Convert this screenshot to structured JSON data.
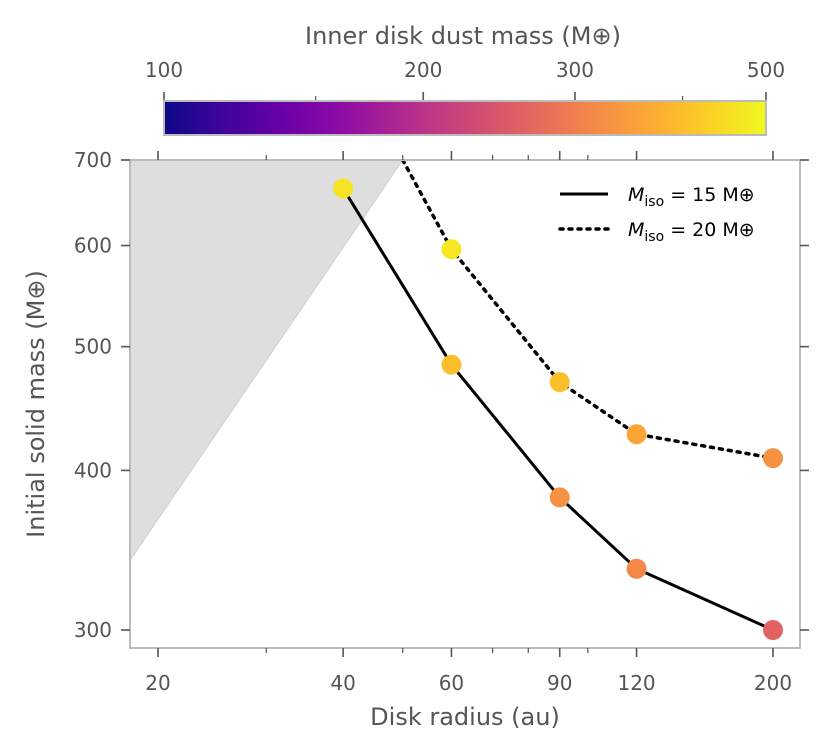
{
  "chart_data": {
    "type": "line",
    "xscale": "log",
    "yscale": "log",
    "xlabel": "Disk radius (au)",
    "ylabel": "Initial solid mass (M⊕)",
    "xlim": [
      18,
      215
    ],
    "ylim": [
      290,
      700
    ],
    "xticks": [
      {
        "value": 20,
        "label": "20"
      },
      {
        "value": 40,
        "label": "40"
      },
      {
        "value": 60,
        "label": "60"
      },
      {
        "value": 90,
        "label": "90"
      },
      {
        "value": 120,
        "label": "120"
      },
      {
        "value": 200,
        "label": "200"
      }
    ],
    "yticks": [
      {
        "value": 300,
        "label": "300"
      },
      {
        "value": 400,
        "label": "400"
      },
      {
        "value": 500,
        "label": "500"
      },
      {
        "value": 600,
        "label": "600"
      },
      {
        "value": 700,
        "label": "700"
      }
    ],
    "excluded_region": {
      "color": "#dedede",
      "boundary": [
        [
          18,
          340
        ],
        [
          50,
          700
        ]
      ]
    },
    "series": [
      {
        "name": "M_iso = 15 M⊕",
        "legend_main": "M",
        "legend_sub": "iso",
        "legend_rest": " = 15 M⊕",
        "linestyle": "solid",
        "x": [
          40,
          60,
          90,
          120,
          200
        ],
        "y": [
          665,
          484,
          381,
          335,
          300
        ],
        "inner_dust_mass": [
          460,
          400,
          330,
          315,
          260
        ]
      },
      {
        "name": "M_iso = 20 M⊕",
        "legend_main": "M",
        "legend_sub": "iso",
        "legend_rest": " = 20 M⊕",
        "linestyle": "dotted",
        "x": [
          60,
          90,
          120,
          200
        ],
        "y": [
          596,
          469,
          427,
          409
        ],
        "inner_dust_mass": [
          470,
          400,
          360,
          330
        ],
        "line_start": [
          50,
          700
        ]
      }
    ],
    "colorbar": {
      "label": "Inner disk dust mass (M⊕)",
      "scale": "log",
      "range": [
        100,
        500
      ],
      "colormap": "plasma",
      "ticks": [
        {
          "value": 100,
          "label": "100"
        },
        {
          "value": 200,
          "label": "200"
        },
        {
          "value": 300,
          "label": "300"
        },
        {
          "value": 500,
          "label": "500"
        }
      ]
    },
    "legend_position": "top-right"
  }
}
